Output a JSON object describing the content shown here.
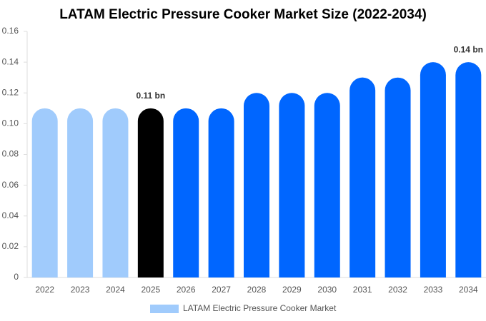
{
  "chart_data": {
    "type": "bar",
    "title": "LATAM Electric Pressure Cooker Market Size (2022-2034)",
    "categories": [
      "2022",
      "2023",
      "2024",
      "2025",
      "2026",
      "2027",
      "2028",
      "2029",
      "2030",
      "2031",
      "2032",
      "2033",
      "2034"
    ],
    "series": [
      {
        "name": "LATAM Electric Pressure Cooker Market",
        "color": "#a0cbfc",
        "values": [
          0.11,
          0.11,
          0.11,
          0.11,
          0.11,
          0.11,
          0.12,
          0.12,
          0.12,
          0.13,
          0.13,
          0.14,
          0.14
        ],
        "value_labels": [
          null,
          null,
          null,
          "0.11 bn",
          null,
          null,
          null,
          null,
          null,
          null,
          null,
          null,
          "0.14 bn"
        ],
        "bar_colors": [
          "#a0cbfc",
          "#a0cbfc",
          "#a0cbfc",
          "#000000",
          "#0066ff",
          "#0066ff",
          "#0066ff",
          "#0066ff",
          "#0066ff",
          "#0066ff",
          "#0066ff",
          "#0066ff",
          "#0066ff"
        ]
      }
    ],
    "ylim": [
      0,
      0.16
    ],
    "yticks": [
      0,
      0.02,
      0.04,
      0.06,
      0.08,
      {
        "value": 0.1,
        "label": "0.10"
      },
      0.12,
      0.14,
      0.16
    ],
    "grid": false,
    "legend": "bottom"
  }
}
